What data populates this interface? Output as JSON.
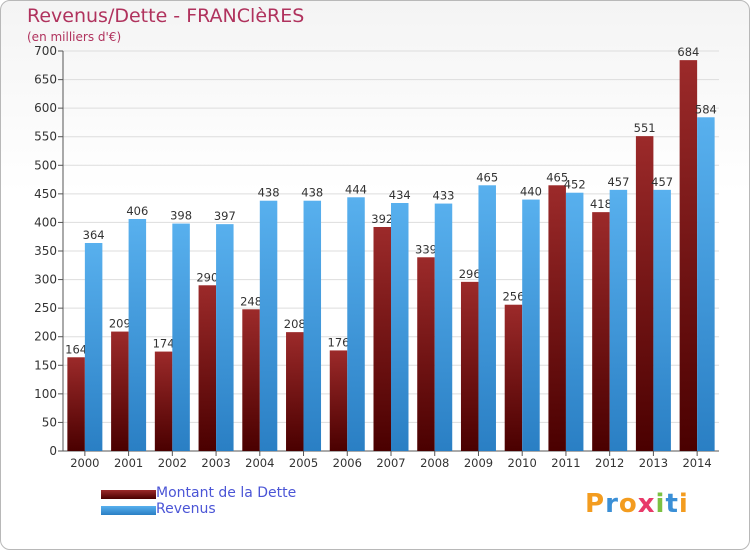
{
  "chart_data": {
    "type": "bar",
    "title": "Revenus/Dette - FRANClèRES",
    "subtitle": "(en milliers d'€)",
    "categories": [
      "2000",
      "2001",
      "2002",
      "2003",
      "2004",
      "2005",
      "2006",
      "2007",
      "2008",
      "2009",
      "2010",
      "2011",
      "2012",
      "2013",
      "2014"
    ],
    "series": [
      {
        "name": "Montant de la Dette",
        "color": "#8b1a1a",
        "values": [
          164,
          209,
          174,
          290,
          248,
          208,
          176,
          392,
          339,
          296,
          256,
          465,
          418,
          551,
          684
        ]
      },
      {
        "name": "Revenus",
        "color": "#4aa3e8",
        "values": [
          364,
          406,
          398,
          397,
          438,
          438,
          444,
          434,
          433,
          465,
          440,
          452,
          457,
          457,
          584
        ]
      }
    ],
    "ylim": [
      0,
      700
    ],
    "yticks": [
      0,
      50,
      100,
      150,
      200,
      250,
      300,
      350,
      400,
      450,
      500,
      550,
      600,
      650,
      700
    ],
    "grid": true,
    "legend_position": "bottom-left"
  },
  "logo": {
    "letters": [
      "P",
      "r",
      "o",
      "x",
      "i",
      "t",
      "i"
    ],
    "colors": [
      "#f39c1f",
      "#3a8fd6",
      "#f39c1f",
      "#e83a6a",
      "#7cc142",
      "#3a8fd6",
      "#f39c1f"
    ]
  }
}
